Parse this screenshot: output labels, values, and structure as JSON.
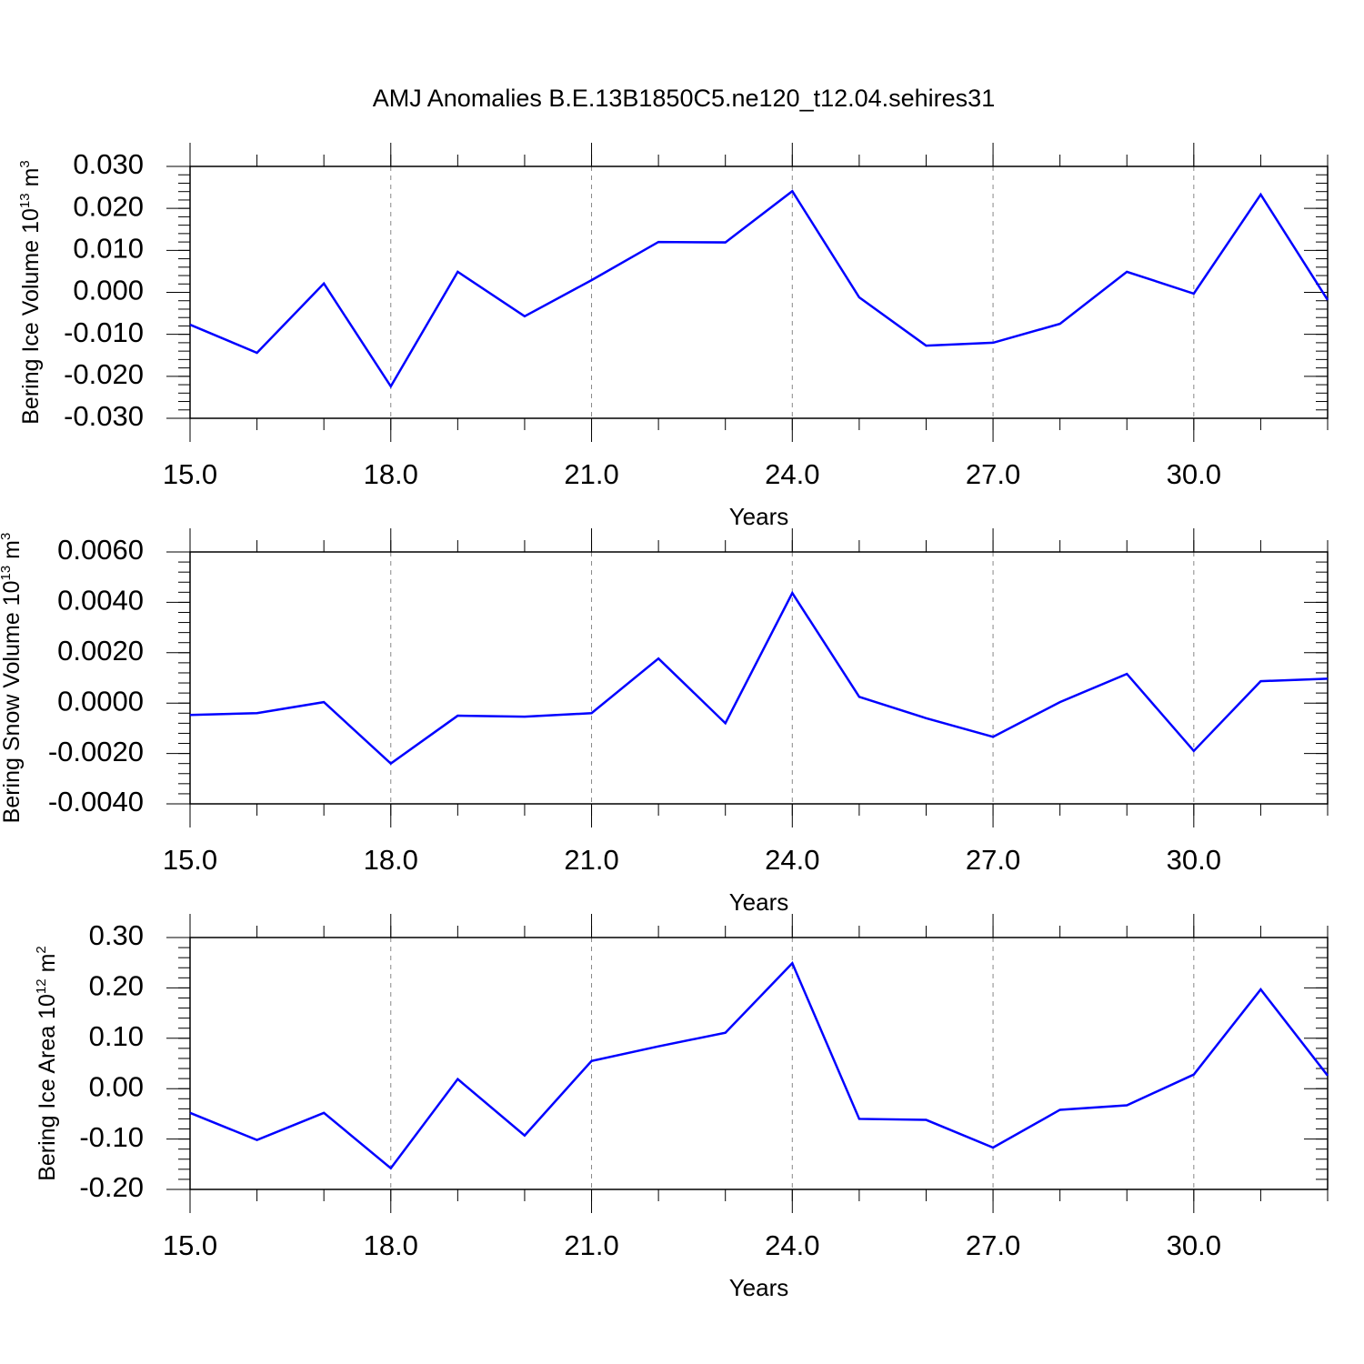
{
  "chart_data": [
    {
      "type": "line",
      "title": "AMJ Anomalies B.E.13B1850C5.ne120_t12.04.sehires31",
      "ylabel": {
        "text": "Bering Ice Volume 10",
        "exp": "13",
        "unit": "m",
        "unit_exp": "3"
      },
      "xlabel": "Years",
      "color": "#0000ff",
      "x": [
        15,
        16,
        17,
        18,
        19,
        20,
        21,
        22,
        23,
        24,
        25,
        26,
        27,
        28,
        29,
        30,
        31,
        32
      ],
      "values": [
        -0.0077,
        -0.0144,
        0.0021,
        -0.0224,
        0.0049,
        -0.0057,
        0.0029,
        0.012,
        0.0119,
        0.0241,
        -0.0012,
        -0.0127,
        -0.012,
        -0.0075,
        0.0049,
        -0.0003,
        0.0233,
        -0.0018
      ],
      "xlim": [
        15,
        32
      ],
      "xticks": [
        {
          "value": 15,
          "label": "15.0"
        },
        {
          "value": 18,
          "label": "18.0"
        },
        {
          "value": 21,
          "label": "21.0"
        },
        {
          "value": 24,
          "label": "24.0"
        },
        {
          "value": 27,
          "label": "27.0"
        },
        {
          "value": 30,
          "label": "30.0"
        }
      ],
      "xminor_step": 1,
      "ylim": [
        -0.03,
        0.03
      ],
      "yticks": [
        {
          "value": -0.03,
          "label": "-0.030"
        },
        {
          "value": -0.02,
          "label": "-0.020"
        },
        {
          "value": -0.01,
          "label": "-0.010"
        },
        {
          "value": 0,
          "label": "0.000"
        },
        {
          "value": 0.01,
          "label": "0.010"
        },
        {
          "value": 0.02,
          "label": "0.020"
        },
        {
          "value": 0.03,
          "label": "0.030"
        }
      ],
      "yminor_step": 0.002,
      "xgrid": true
    },
    {
      "type": "line",
      "ylabel": {
        "text": "Bering Snow Volume 10",
        "exp": "13",
        "unit": "m",
        "unit_exp": "3"
      },
      "xlabel": "Years",
      "color": "#0000ff",
      "x": [
        15,
        16,
        17,
        18,
        19,
        20,
        21,
        22,
        23,
        24,
        25,
        26,
        27,
        28,
        29,
        30,
        31,
        32
      ],
      "values": [
        -0.00047,
        -0.0004,
        4e-05,
        -0.0024,
        -0.0005,
        -0.00054,
        -0.0004,
        0.00177,
        -0.0008,
        0.00437,
        0.00025,
        -0.0006,
        -0.00134,
        4e-05,
        0.00116,
        -0.0019,
        0.00087,
        0.00097
      ],
      "xlim": [
        15,
        32
      ],
      "xticks": [
        {
          "value": 15,
          "label": "15.0"
        },
        {
          "value": 18,
          "label": "18.0"
        },
        {
          "value": 21,
          "label": "21.0"
        },
        {
          "value": 24,
          "label": "24.0"
        },
        {
          "value": 27,
          "label": "27.0"
        },
        {
          "value": 30,
          "label": "30.0"
        }
      ],
      "xminor_step": 1,
      "ylim": [
        -0.004,
        0.006
      ],
      "yticks": [
        {
          "value": -0.004,
          "label": "-0.0040"
        },
        {
          "value": -0.002,
          "label": "-0.0020"
        },
        {
          "value": 0,
          "label": "0.0000"
        },
        {
          "value": 0.002,
          "label": "0.0020"
        },
        {
          "value": 0.004,
          "label": "0.0040"
        },
        {
          "value": 0.006,
          "label": "0.0060"
        }
      ],
      "yminor_step": 0.0004,
      "xgrid": true
    },
    {
      "type": "line",
      "ylabel": {
        "text": "Bering Ice Area 10",
        "exp": "12",
        "unit": "m",
        "unit_exp": "2"
      },
      "xlabel": "Years",
      "color": "#0000ff",
      "x": [
        15,
        16,
        17,
        18,
        19,
        20,
        21,
        22,
        23,
        24,
        25,
        26,
        27,
        28,
        29,
        30,
        31,
        32
      ],
      "values": [
        -0.048,
        -0.102,
        -0.048,
        -0.158,
        0.019,
        -0.093,
        0.055,
        0.084,
        0.111,
        0.249,
        -0.06,
        -0.062,
        -0.117,
        -0.042,
        -0.033,
        0.028,
        0.197,
        0.026
      ],
      "xlim": [
        15,
        32
      ],
      "xticks": [
        {
          "value": 15,
          "label": "15.0"
        },
        {
          "value": 18,
          "label": "18.0"
        },
        {
          "value": 21,
          "label": "21.0"
        },
        {
          "value": 24,
          "label": "24.0"
        },
        {
          "value": 27,
          "label": "27.0"
        },
        {
          "value": 30,
          "label": "30.0"
        }
      ],
      "xminor_step": 1,
      "ylim": [
        -0.2,
        0.3
      ],
      "yticks": [
        {
          "value": -0.2,
          "label": "-0.20"
        },
        {
          "value": -0.1,
          "label": "-0.10"
        },
        {
          "value": 0,
          "label": "0.00"
        },
        {
          "value": 0.1,
          "label": "0.10"
        },
        {
          "value": 0.2,
          "label": "0.20"
        },
        {
          "value": 0.3,
          "label": "0.30"
        }
      ],
      "yminor_step": 0.02,
      "xgrid": true
    }
  ]
}
